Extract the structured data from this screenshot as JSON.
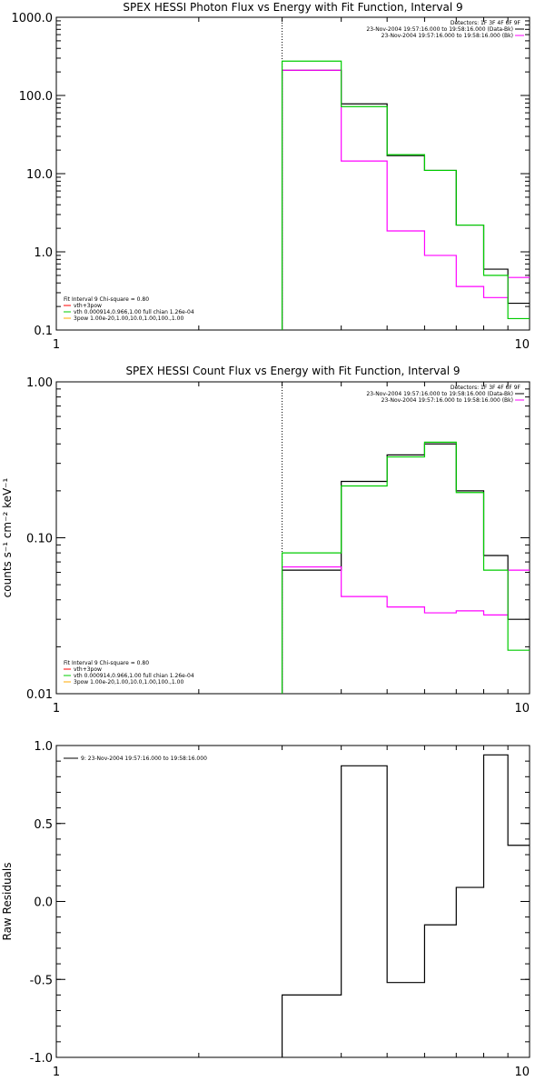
{
  "chart_data": [
    {
      "type": "line",
      "title": "SPEX HESSI Photon Flux vs Energy with Fit Function, Interval 9",
      "xlabel": "",
      "ylabel": "",
      "xscale": "log",
      "yscale": "log",
      "xlim": [
        1,
        10
      ],
      "ylim": [
        0.1,
        1000
      ],
      "xticks": [
        1,
        10
      ],
      "xtick_labels": [
        "1",
        "10"
      ],
      "yticks": [
        0.1,
        1,
        10,
        100,
        1000
      ],
      "ytick_labels": [
        "0.1",
        "1.0",
        "10.0",
        "100.0",
        "1000.0"
      ],
      "reference_line_x": 3,
      "edges": [
        3,
        4,
        5,
        6,
        7,
        8,
        9,
        10
      ],
      "series": [
        {
          "key": "data",
          "color": "#000000",
          "values": [
            210,
            78,
            17,
            11,
            2.2,
            0.6,
            0.22
          ]
        },
        {
          "key": "bk",
          "color": "#ff00ff",
          "values": [
            210,
            14.5,
            1.85,
            0.9,
            0.36,
            0.26,
            0.47
          ]
        },
        {
          "key": "fit",
          "color": "#00cc00",
          "values": [
            275,
            72,
            17.5,
            11,
            2.2,
            0.5,
            0.14
          ]
        }
      ],
      "legend_top": {
        "header": "Detectors: 1F 3F 4F 6F 9F",
        "entries": [
          {
            "label": "23-Nov-2004 19:57:16.000 to 19:58:16.000 (Data-Bk)",
            "color": "#000000"
          },
          {
            "label": "23-Nov-2004 19:57:16.000 to 19:58:16.000 (Bk)",
            "color": "#ff00ff"
          }
        ]
      },
      "legend_bottom": {
        "header": "Fit Interval 9   Chi-square = 0.80",
        "entries": [
          {
            "label": "vth+3pow",
            "color": "#ff0000"
          },
          {
            "label": "vth 0.000914,0.966,1.00  full chian 1.26e-04",
            "color": "#00cc00"
          },
          {
            "label": "3pow 1.00e-20,1.00,10.0,1.00,100.,1.00",
            "color": "#ffaa00"
          }
        ]
      }
    },
    {
      "type": "line",
      "title": "SPEX HESSI Count Flux vs Energy with Fit Function, Interval 9",
      "xlabel": "",
      "ylabel": "counts s⁻¹ cm⁻² keV⁻¹",
      "xscale": "log",
      "yscale": "log",
      "xlim": [
        1,
        10
      ],
      "ylim": [
        0.01,
        1
      ],
      "xticks": [
        1,
        10
      ],
      "xtick_labels": [
        "1",
        "10"
      ],
      "yticks": [
        0.01,
        0.1,
        1
      ],
      "ytick_labels": [
        "0.01",
        "0.10",
        "1.00"
      ],
      "reference_line_x": 3,
      "edges": [
        3,
        4,
        5,
        6,
        7,
        8,
        9,
        10
      ],
      "series": [
        {
          "key": "data",
          "color": "#000000",
          "values": [
            0.062,
            0.23,
            0.34,
            0.4,
            0.2,
            0.077,
            0.03
          ]
        },
        {
          "key": "bk",
          "color": "#ff00ff",
          "values": [
            0.065,
            0.042,
            0.036,
            0.033,
            0.034,
            0.032,
            0.062
          ]
        },
        {
          "key": "fit",
          "color": "#00cc00",
          "values": [
            0.08,
            0.215,
            0.33,
            0.41,
            0.195,
            0.062,
            0.019
          ]
        }
      ],
      "legend_top": {
        "header": "Detectors: 1F 3F 4F 6F 9F",
        "entries": [
          {
            "label": "23-Nov-2004 19:57:16.000 to 19:58:16.000 (Data-Bk)",
            "color": "#000000"
          },
          {
            "label": "23-Nov-2004 19:57:16.000 to 19:58:16.000 (Bk)",
            "color": "#ff00ff"
          }
        ]
      },
      "legend_bottom": {
        "header": "Fit Interval 9   Chi-square = 0.80",
        "entries": [
          {
            "label": "vth+3pow",
            "color": "#ff0000"
          },
          {
            "label": "vth 0.000914,0.966,1.00  full chian 1.26e-04",
            "color": "#00cc00"
          },
          {
            "label": "3pow 1.00e-20,1.00,10.0,1.00,100.,1.00",
            "color": "#ffaa00"
          }
        ]
      }
    },
    {
      "type": "line",
      "title": "",
      "xlabel": "",
      "ylabel": "Raw Residuals",
      "xscale": "log",
      "yscale": "linear",
      "xlim": [
        1,
        10
      ],
      "ylim": [
        -1,
        1
      ],
      "xticks": [
        1,
        10
      ],
      "xtick_labels": [
        "1",
        "10"
      ],
      "yticks": [
        -1,
        -0.5,
        0,
        0.5,
        1
      ],
      "ytick_labels": [
        "-1.0",
        "-0.5",
        "0.0",
        "0.5",
        "1.0"
      ],
      "edges": [
        3,
        4,
        5,
        6,
        7,
        8,
        9,
        10
      ],
      "series": [
        {
          "key": "residuals",
          "color": "#000000",
          "values": [
            -0.6,
            0.87,
            -0.52,
            -0.15,
            0.09,
            0.94,
            0.36
          ]
        }
      ],
      "legend_top": {
        "header": "",
        "entries": [
          {
            "label": "9: 23-Nov-2004 19:57:16.000 to 19:58:16.000",
            "color": "#000000"
          }
        ]
      }
    }
  ]
}
